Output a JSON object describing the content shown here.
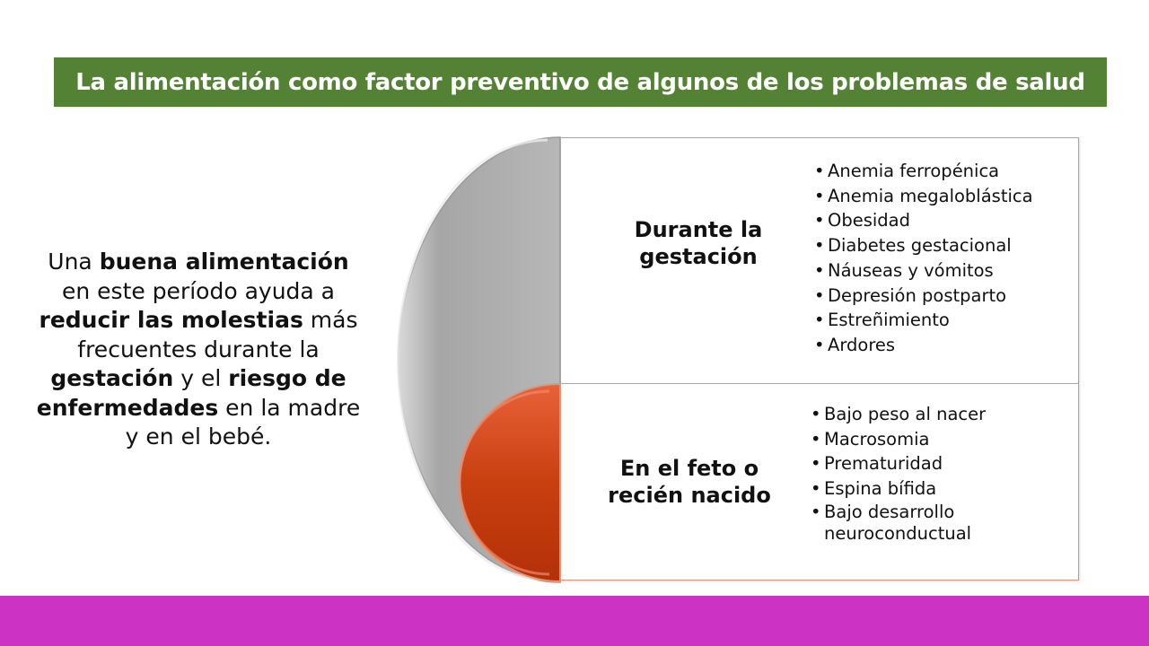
{
  "slide": {
    "title": "La alimentación como factor preventivo de algunos de los problemas de salud",
    "colors": {
      "title_bar": "#548235",
      "bottom_strip": "#cc33c4",
      "gray_semicircle": "#b3b3b3",
      "red_semicircle": "#c93a12"
    }
  },
  "left_text": {
    "l1_a": "Una ",
    "l1_b": "buena alimentación",
    "l2": "en este período ayuda a",
    "l3_a": "reducir las molestias",
    "l3_b": " más",
    "l4": "frecuentes durante la",
    "l5_a": "gestación",
    "l5_b": " y el ",
    "l5_c": "riesgo de",
    "l6_a": "enfermedades",
    "l6_b": " en la madre",
    "l7": "y en el bebé."
  },
  "sections": [
    {
      "heading": "Durante la gestación",
      "items": [
        "Anemia ferropénica",
        "Anemia megaloblástica",
        "Obesidad",
        "Diabetes gestacional",
        "Náuseas y vómitos",
        "Depresión postparto",
        "Estreñimiento",
        "Ardores"
      ]
    },
    {
      "heading": "En el feto o recién nacido",
      "items": [
        "Bajo peso al nacer",
        "Macrosomia",
        "Prematuridad",
        "Espina bífida",
        "Bajo desarrollo neuroconductual"
      ]
    }
  ]
}
